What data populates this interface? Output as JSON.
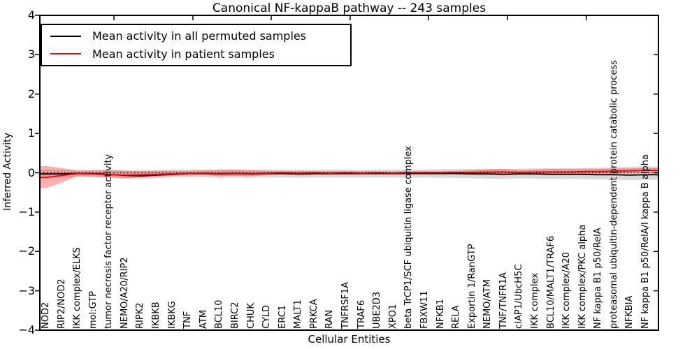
{
  "chart_data": {
    "type": "line",
    "title": "Canonical NF-kappaB pathway -- 243 samples",
    "xlabel": "Cellular Entities",
    "ylabel": "Inferred Activity",
    "ylim": [
      -4,
      4
    ],
    "ytick_values": [
      4,
      3,
      2,
      1,
      0,
      -1,
      -2,
      -3,
      -4
    ],
    "ytick_labels": [
      "4",
      "3",
      "2",
      "1",
      "0",
      "−1",
      "−2",
      "−3",
      "−4"
    ],
    "grid": false,
    "legend_position": "upper left",
    "zero_line": true,
    "categories": [
      "NOD2",
      "RIP2/NOD2",
      "IKK complex/ELKS",
      "mol:GTP",
      "tumor necrosis factor receptor activity",
      "NEMO/A20/RIP2",
      "RIPK2",
      "IKBKB",
      "IKBKG",
      "TNF",
      "ATM",
      "BCL10",
      "BIRC2",
      "CHUK",
      "CYLD",
      "ERC1",
      "MALT1",
      "PRKCA",
      "RAN",
      "TNFRSF1A",
      "TRAF6",
      "UBE2D3",
      "XPO1",
      "beta TrCP1/SCF ubiquitin ligase complex",
      "FBXW11",
      "NFKB1",
      "RELA",
      "Exportin 1/RanGTP",
      "NEMO/ATM",
      "TNF/TNFR1A",
      "cIAP1/UbcH5C",
      "IKK complex",
      "BCL10/MALT1/TRAF6",
      "IKK complex/A20",
      "IKK complex/PKC alpha",
      "NF kappa B1 p50/RelA",
      "proteasomal ubiquitin-dependent protein catabolic process",
      "NFKBIA",
      "NF kappa B1 p50/RelA/I kappa B alpha"
    ],
    "series": [
      {
        "name": "Mean activity in all permuted samples",
        "line_color": "#000000",
        "band_color": "rgba(128,128,128,0.30)",
        "values": [
          -0.03,
          -0.03,
          -0.02,
          -0.02,
          -0.04,
          -0.07,
          -0.08,
          -0.06,
          -0.04,
          -0.02,
          -0.02,
          -0.03,
          -0.02,
          -0.03,
          -0.02,
          -0.02,
          -0.03,
          -0.02,
          -0.02,
          -0.02,
          -0.02,
          -0.02,
          -0.02,
          -0.02,
          -0.02,
          -0.02,
          -0.02,
          -0.03,
          -0.03,
          -0.04,
          -0.03,
          -0.03,
          -0.04,
          -0.04,
          -0.04,
          -0.05,
          -0.05,
          -0.06,
          -0.05
        ],
        "band_upper": [
          0.08,
          0.07,
          0.08,
          0.07,
          0.08,
          0.07,
          0.06,
          0.07,
          0.08,
          0.08,
          0.08,
          0.07,
          0.08,
          0.07,
          0.08,
          0.08,
          0.07,
          0.08,
          0.08,
          0.08,
          0.07,
          0.08,
          0.08,
          0.08,
          0.08,
          0.09,
          0.09,
          0.1,
          0.1,
          0.1,
          0.1,
          0.11,
          0.11,
          0.12,
          0.12,
          0.13,
          0.14,
          0.15,
          0.16
        ],
        "band_lower": [
          -0.12,
          -0.12,
          -0.12,
          -0.11,
          -0.13,
          -0.15,
          -0.16,
          -0.14,
          -0.12,
          -0.12,
          -0.12,
          -0.13,
          -0.12,
          -0.13,
          -0.12,
          -0.12,
          -0.13,
          -0.12,
          -0.12,
          -0.12,
          -0.12,
          -0.12,
          -0.12,
          -0.13,
          -0.12,
          -0.13,
          -0.13,
          -0.14,
          -0.15,
          -0.16,
          -0.14,
          -0.15,
          -0.16,
          -0.16,
          -0.16,
          -0.17,
          -0.18,
          -0.19,
          -0.18
        ]
      },
      {
        "name": "Mean activity in patient samples",
        "line_color": "#ff0000",
        "band_color": "rgba(255,30,30,0.35)",
        "values": [
          -0.12,
          -0.07,
          -0.02,
          -0.03,
          -0.05,
          -0.06,
          -0.05,
          -0.04,
          -0.03,
          -0.02,
          -0.01,
          -0.02,
          -0.01,
          -0.02,
          -0.01,
          0.0,
          -0.01,
          0.0,
          -0.01,
          0.0,
          -0.01,
          0.0,
          -0.01,
          0.0,
          0.0,
          0.0,
          0.01,
          0.01,
          0.02,
          0.02,
          0.01,
          0.02,
          0.02,
          0.02,
          0.03,
          0.03,
          0.04,
          0.05,
          0.06
        ],
        "band_upper": [
          0.17,
          0.12,
          0.05,
          0.06,
          0.06,
          0.05,
          0.04,
          0.05,
          0.05,
          0.05,
          0.06,
          0.08,
          0.08,
          0.07,
          0.05,
          0.04,
          0.05,
          0.04,
          0.04,
          0.04,
          0.04,
          0.04,
          0.03,
          0.04,
          0.04,
          0.04,
          0.05,
          0.06,
          0.09,
          0.1,
          0.07,
          0.08,
          0.1,
          0.09,
          0.1,
          0.1,
          0.11,
          0.11,
          0.12
        ],
        "band_lower": [
          -0.39,
          -0.25,
          -0.08,
          -0.1,
          -0.12,
          -0.14,
          -0.12,
          -0.1,
          -0.08,
          -0.07,
          -0.06,
          -0.09,
          -0.08,
          -0.09,
          -0.06,
          -0.05,
          -0.07,
          -0.06,
          -0.06,
          -0.05,
          -0.05,
          -0.04,
          -0.05,
          -0.04,
          -0.04,
          -0.04,
          -0.04,
          -0.04,
          -0.04,
          -0.04,
          -0.04,
          -0.03,
          -0.03,
          -0.03,
          -0.03,
          -0.02,
          -0.02,
          -0.01,
          0.0
        ]
      }
    ]
  }
}
